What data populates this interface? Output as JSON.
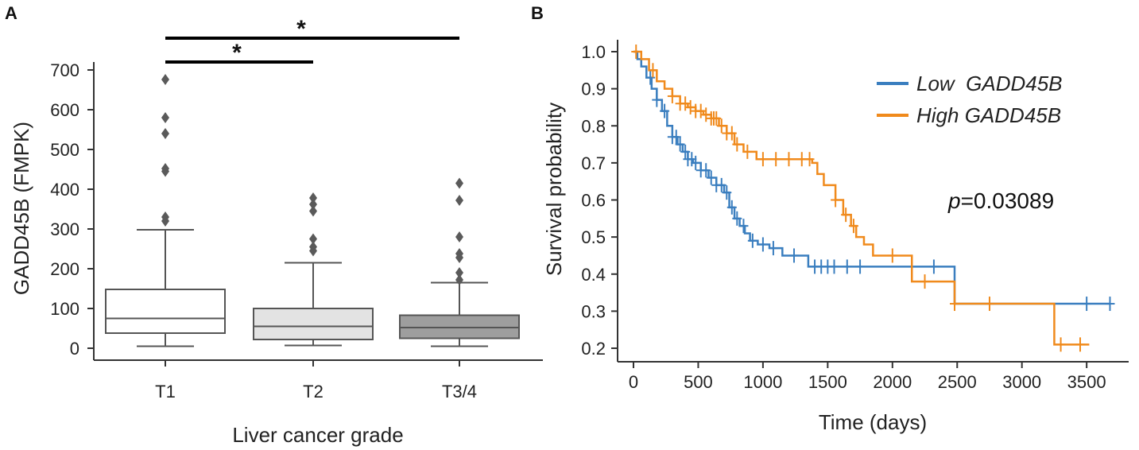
{
  "chart_data": [
    {
      "panel": "A",
      "type": "box",
      "xlabel": "Liver cancer grade",
      "ylabel": "GADD45B (FMPK)",
      "ylim": [
        -30,
        720
      ],
      "yticks": [
        0,
        100,
        200,
        300,
        400,
        500,
        600,
        700
      ],
      "groups": [
        {
          "name": "T1",
          "color": "#ffffff",
          "min": 5,
          "q1": 38,
          "median": 75,
          "q3": 148,
          "max": 298,
          "outliers": [
            320,
            330,
            445,
            452,
            540,
            580,
            676
          ]
        },
        {
          "name": "T2",
          "color": "#e3e3e3",
          "min": 7,
          "q1": 22,
          "median": 55,
          "q3": 100,
          "max": 215,
          "outliers": [
            245,
            255,
            275,
            345,
            362,
            378
          ]
        },
        {
          "name": "T3/4",
          "color": "#9e9e9e",
          "min": 5,
          "q1": 25,
          "median": 52,
          "q3": 83,
          "max": 165,
          "outliers": [
            172,
            190,
            228,
            238,
            280,
            372,
            415
          ]
        }
      ],
      "significance": [
        {
          "from": "T1",
          "to": "T2",
          "label": "*"
        },
        {
          "from": "T1",
          "to": "T3/4",
          "label": "*"
        }
      ]
    },
    {
      "panel": "B",
      "type": "line",
      "subtype": "kaplan-meier",
      "xlabel": "Time (days)",
      "ylabel": "Survival probability",
      "xlim": [
        -100,
        3750
      ],
      "ylim": [
        0.18,
        1.02
      ],
      "xticks": [
        0,
        500,
        1000,
        1500,
        2000,
        2500,
        3000,
        3500
      ],
      "yticks": [
        0.2,
        0.3,
        0.4,
        0.5,
        0.6,
        0.7,
        0.8,
        0.9,
        1.0
      ],
      "annotation": {
        "prefix": "p",
        "text": "=0.03089"
      },
      "series": [
        {
          "name": "Low  GADD45B",
          "color": "#3a7ebf",
          "x": [
            0,
            30,
            60,
            100,
            140,
            180,
            220,
            260,
            300,
            340,
            380,
            420,
            460,
            520,
            580,
            640,
            700,
            740,
            780,
            820,
            860,
            900,
            960,
            1050,
            1150,
            1350,
            2480,
            3680
          ],
          "y": [
            1.0,
            0.98,
            0.96,
            0.93,
            0.9,
            0.87,
            0.84,
            0.8,
            0.77,
            0.75,
            0.73,
            0.71,
            0.7,
            0.68,
            0.66,
            0.64,
            0.62,
            0.58,
            0.55,
            0.53,
            0.51,
            0.49,
            0.48,
            0.47,
            0.45,
            0.42,
            0.32,
            0.32
          ],
          "censored": [
            130,
            180,
            240,
            300,
            330,
            360,
            400,
            420,
            450,
            480,
            520,
            560,
            600,
            640,
            680,
            720,
            760,
            800,
            850,
            920,
            1000,
            1080,
            1240,
            1400,
            1450,
            1500,
            1550,
            1650,
            1750,
            2320,
            3500,
            3680
          ]
        },
        {
          "name": "High GADD45B",
          "color": "#f08a1c",
          "x": [
            0,
            60,
            120,
            180,
            240,
            300,
            360,
            420,
            480,
            540,
            600,
            660,
            720,
            780,
            850,
            950,
            1380,
            1420,
            1470,
            1560,
            1620,
            1680,
            1720,
            1780,
            1850,
            2150,
            2480,
            3250,
            3520
          ],
          "y": [
            1.0,
            0.98,
            0.95,
            0.92,
            0.9,
            0.88,
            0.86,
            0.85,
            0.84,
            0.83,
            0.82,
            0.8,
            0.78,
            0.75,
            0.73,
            0.71,
            0.7,
            0.67,
            0.64,
            0.6,
            0.56,
            0.53,
            0.5,
            0.48,
            0.45,
            0.38,
            0.32,
            0.21,
            0.21
          ],
          "censored": [
            20,
            150,
            300,
            360,
            400,
            440,
            480,
            520,
            560,
            600,
            620,
            640,
            680,
            720,
            760,
            800,
            880,
            1000,
            1100,
            1200,
            1300,
            1360,
            1560,
            1640,
            1700,
            2000,
            2250,
            2480,
            2750,
            3300,
            3450
          ]
        }
      ]
    }
  ]
}
